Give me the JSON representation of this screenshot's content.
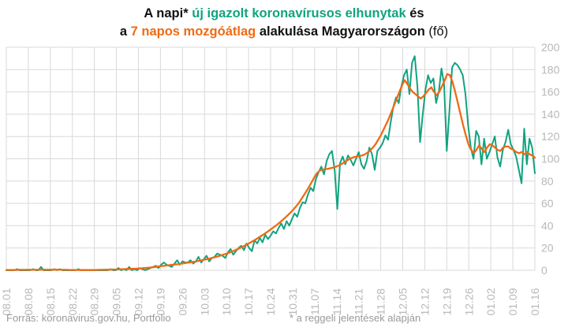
{
  "title": {
    "l1_a": "A napi",
    "l1_star": "*",
    "l1_green": "új igazolt koronavírusos elhunytak",
    "l1_b": "és",
    "l2_a": "a",
    "l2_orange": "7 napos mozgóátlag",
    "l2_b": "alakulása Magyarországon",
    "l2_c": "(fő)"
  },
  "footer": {
    "source": "Forrás: koronavirus.gov.hu, Portfolio",
    "note": "* a reggeli jelentések alapján"
  },
  "colors": {
    "daily": "#11a37f",
    "avg": "#f06a13",
    "grid": "#d9d9d9",
    "tick": "#b8b8b8"
  },
  "chart_data": {
    "type": "line",
    "x_start": "08.01",
    "x_end": "01.16",
    "xticks": [
      "08.01",
      "08.08",
      "08.15",
      "08.22",
      "08.29",
      "09.05",
      "09.12",
      "09.19",
      "09.26",
      "10.03",
      "10.10",
      "10.17",
      "10.24",
      "10.31",
      "11.07",
      "11.14",
      "11.21",
      "11.28",
      "12.05",
      "12.12",
      "12.19",
      "12.26",
      "01.02",
      "01.09",
      "01.16"
    ],
    "yticks": [
      0,
      20,
      40,
      60,
      80,
      100,
      120,
      140,
      160,
      180,
      200
    ],
    "ylim": [
      0,
      200
    ],
    "y_axis_side": "right",
    "grid": true,
    "series": [
      {
        "name": "új igazolt koronavírusos elhunytak",
        "values": [
          0,
          0,
          0,
          0,
          1,
          0,
          0,
          0,
          0,
          0,
          1,
          0,
          0,
          3,
          0,
          0,
          0,
          0,
          1,
          0,
          1,
          0,
          0,
          0,
          0,
          0,
          0,
          1,
          0,
          0,
          0,
          0,
          0,
          0,
          0,
          0,
          0,
          0,
          0,
          1,
          0,
          0,
          2,
          0,
          1,
          0,
          3,
          0,
          1,
          0,
          2,
          1,
          0,
          1,
          2,
          3,
          4,
          2,
          5,
          7,
          5,
          4,
          3,
          6,
          9,
          5,
          8,
          7,
          7,
          9,
          6,
          8,
          12,
          7,
          10,
          13,
          8,
          11,
          12,
          15,
          14,
          13,
          11,
          16,
          19,
          14,
          17,
          20,
          22,
          18,
          24,
          20,
          17,
          27,
          24,
          29,
          25,
          32,
          28,
          31,
          35,
          33,
          38,
          42,
          37,
          44,
          40,
          46,
          51,
          48,
          56,
          61,
          60,
          68,
          74,
          71,
          82,
          88,
          93,
          86,
          98,
          104,
          107,
          90,
          55,
          96,
          102,
          95,
          103,
          99,
          94,
          100,
          106,
          95,
          91,
          98,
          110,
          104,
          90,
          107,
          110,
          114,
          121,
          117,
          133,
          147,
          155,
          150,
          165,
          175,
          180,
          158,
          186,
          192,
          165,
          115,
          140,
          162,
          175,
          168,
          172,
          150,
          160,
          181,
          167,
          107,
          143,
          182,
          186,
          184,
          180,
          175,
          158,
          130,
          110,
          100,
          125,
          120,
          95,
          118,
          100,
          106,
          113,
          120,
          101,
          93,
          108,
          115,
          126,
          113,
          108,
          102,
          90,
          78,
          127,
          95,
          118,
          110,
          87
        ]
      },
      {
        "name": "7 napos mozgóátlag",
        "values": [
          0.3,
          0.3,
          0.3,
          0.3,
          0.3,
          0.4,
          0.4,
          0.4,
          0.4,
          0.4,
          0.4,
          0.4,
          0.4,
          0.5,
          0.5,
          0.5,
          0.5,
          0.5,
          0.5,
          0.5,
          0.4,
          0.4,
          0.4,
          0.4,
          0.3,
          0.3,
          0.3,
          0.3,
          0.2,
          0.2,
          0.2,
          0.2,
          0.2,
          0.3,
          0.3,
          0.4,
          0.4,
          0.5,
          0.5,
          0.6,
          0.7,
          0.7,
          0.8,
          0.9,
          1,
          1.1,
          1.2,
          1.3,
          1.4,
          1.5,
          1.6,
          1.8,
          2,
          2.2,
          2.4,
          2.7,
          3,
          3.3,
          3.6,
          3.9,
          4.2,
          4.5,
          4.8,
          5,
          5.3,
          5.6,
          6,
          6.3,
          6.7,
          7,
          7.4,
          7.8,
          8.2,
          8.7,
          9.2,
          9.7,
          10.2,
          10.8,
          11.4,
          12,
          12.7,
          13.4,
          14.2,
          15,
          15.9,
          16.8,
          17.8,
          18.9,
          20,
          21.2,
          22.4,
          23.7,
          25,
          26.4,
          27.8,
          29.3,
          30.8,
          32.4,
          34,
          35.7,
          37.4,
          39.2,
          41,
          43,
          45,
          47.2,
          49.4,
          51.8,
          54.2,
          57,
          60,
          63.5,
          67.2,
          71,
          75,
          79.2,
          83.5,
          87.2,
          89.5,
          90.3,
          90.6,
          91,
          91.5,
          92,
          92.8,
          93.8,
          95,
          96.4,
          98,
          99.5,
          100.8,
          101.6,
          102,
          102.4,
          103,
          104,
          105.5,
          107.5,
          110,
          113,
          117,
          121,
          126,
          131,
          136,
          142,
          148,
          154,
          160,
          166,
          170.5,
          167,
          163,
          160,
          158,
          156,
          154,
          156,
          159,
          162,
          164,
          160,
          157,
          160,
          165,
          170,
          176,
          175,
          169,
          160,
          150,
          140,
          130,
          121,
          113,
          108,
          105,
          108,
          112,
          109,
          106,
          110,
          113,
          112,
          110,
          108,
          107,
          110,
          111,
          111,
          109,
          108,
          106,
          105,
          106,
          104,
          106,
          104,
          103,
          101
        ]
      }
    ]
  }
}
